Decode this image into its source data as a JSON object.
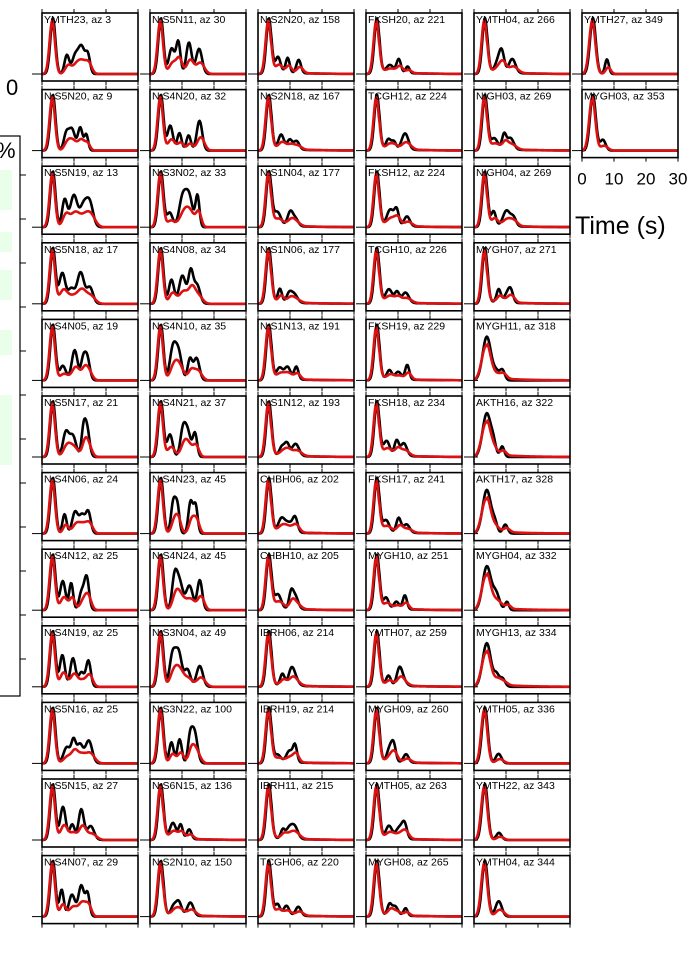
{
  "figure": {
    "left_axis_zero": "0",
    "left_axis_percent": "%",
    "x_ticks": [
      "0",
      "10",
      "20",
      "30"
    ],
    "x_axis_label": "Time (s)"
  },
  "colors": {
    "observed": "#000000",
    "synthetic": "#dd1111",
    "inset_fill": "#eaffea"
  },
  "chart_data": {
    "type": "line",
    "x_range": [
      0,
      30
    ],
    "x_unit": "s",
    "x_axis_label": "Time (s)",
    "columns": [
      {
        "panels": [
          {
            "label": "YMTH23, az 3",
            "shape": "m"
          },
          {
            "label": "N.S5N20, az 9",
            "shape": "m"
          },
          {
            "label": "N.S5N19, az 13",
            "shape": "m"
          },
          {
            "label": "N.S5N18, az 17",
            "shape": "m"
          },
          {
            "label": "N.S4N05, az 19",
            "shape": "m"
          },
          {
            "label": "N.S5N17, az 21",
            "shape": "m"
          },
          {
            "label": "N.S4N06, az 24",
            "shape": "m"
          },
          {
            "label": "N.S4N12, az 25",
            "shape": "m"
          },
          {
            "label": "N.S4N19, az 25",
            "shape": "m"
          },
          {
            "label": "N.S5N16, az 25",
            "shape": "m"
          },
          {
            "label": "N.S5N15, az 27",
            "shape": "m"
          },
          {
            "label": "N.S4N07, az 29",
            "shape": "m"
          }
        ]
      },
      {
        "panels": [
          {
            "label": "N.S5N11, az 30",
            "shape": "m"
          },
          {
            "label": "N.S4N20, az 32",
            "shape": "m"
          },
          {
            "label": "N.S3N02, az 33",
            "shape": "m"
          },
          {
            "label": "N.S4N08, az 34",
            "shape": "m"
          },
          {
            "label": "N.S4N10, az 35",
            "shape": "m"
          },
          {
            "label": "N.S4N21, az 37",
            "shape": "m"
          },
          {
            "label": "N.S4N23, az 45",
            "shape": "m"
          },
          {
            "label": "N.S4N24, az 45",
            "shape": "m"
          },
          {
            "label": "N.S3N04, az 49",
            "shape": "m"
          },
          {
            "label": "N.S3N22, az 100",
            "shape": "m"
          },
          {
            "label": "N.S6N15, az 136",
            "shape": "b"
          },
          {
            "label": "N.S2N10, az 150",
            "shape": "b"
          }
        ]
      },
      {
        "panels": [
          {
            "label": "N.S2N20, az 158",
            "shape": "b"
          },
          {
            "label": "N.S2N18, az 167",
            "shape": "b"
          },
          {
            "label": "N.S1N04, az 177",
            "shape": "b"
          },
          {
            "label": "N.S1N06, az 177",
            "shape": "b"
          },
          {
            "label": "N.S1N13, az 191",
            "shape": "b"
          },
          {
            "label": "N.S1N12, az 193",
            "shape": "b"
          },
          {
            "label": "CHBH06, az 202",
            "shape": "b"
          },
          {
            "label": "CHBH10, az 205",
            "shape": "b"
          },
          {
            "label": "IBRH06, az 214",
            "shape": "b"
          },
          {
            "label": "IBRH19, az 214",
            "shape": "b"
          },
          {
            "label": "IBRH11, az 215",
            "shape": "b"
          },
          {
            "label": "TCGH06, az 220",
            "shape": "b"
          }
        ]
      },
      {
        "panels": [
          {
            "label": "FKSH20, az 221",
            "shape": "b"
          },
          {
            "label": "TCGH12, az 224",
            "shape": "b"
          },
          {
            "label": "FKSH12, az 224",
            "shape": "b"
          },
          {
            "label": "TCGH10, az 226",
            "shape": "b"
          },
          {
            "label": "FKSH19, az 229",
            "shape": "b"
          },
          {
            "label": "FKSH18, az 234",
            "shape": "b"
          },
          {
            "label": "FKSH17, az 241",
            "shape": "b"
          },
          {
            "label": "MYGH10, az 251",
            "shape": "b"
          },
          {
            "label": "YMTH07, az 259",
            "shape": "b"
          },
          {
            "label": "MYGH09, az 260",
            "shape": "b"
          },
          {
            "label": "YMTH05, az 263",
            "shape": "b"
          },
          {
            "label": "MYGH08, az 265",
            "shape": "b"
          }
        ]
      },
      {
        "panels": [
          {
            "label": "YMTH04, az 266",
            "shape": "b"
          },
          {
            "label": "NIGH03, az 269",
            "shape": "b"
          },
          {
            "label": "NIGH04, az 269",
            "shape": "b"
          },
          {
            "label": "MYGH07, az 271",
            "shape": "b"
          },
          {
            "label": "MYGH11, az 318",
            "shape": "p"
          },
          {
            "label": "AKTH16, az 322",
            "shape": "p"
          },
          {
            "label": "AKTH17, az 328",
            "shape": "p"
          },
          {
            "label": "MYGH04, az 332",
            "shape": "p"
          },
          {
            "label": "MYGH13, az 334",
            "shape": "p"
          },
          {
            "label": "YMTH05, az 336",
            "shape": "s"
          },
          {
            "label": "YMTH22, az 343",
            "shape": "s"
          },
          {
            "label": "YMTH04, az 344",
            "shape": "s"
          }
        ]
      },
      {
        "panels": [
          {
            "label": "YMTH27, az 349",
            "shape": "s"
          },
          {
            "label": "MYGH03, az 353",
            "shape": "s"
          }
        ]
      }
    ]
  }
}
